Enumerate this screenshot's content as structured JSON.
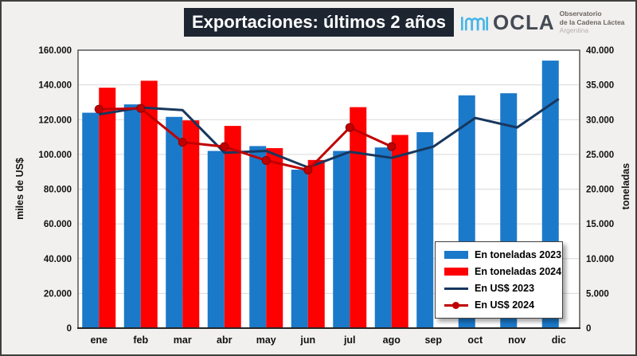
{
  "header": {
    "title": "Exportaciones: últimos 2 años",
    "logo": {
      "wordmark": "OCLA",
      "line1": "Observatorio",
      "line2": "de la Cadena Láctea",
      "line3": "Argentina"
    }
  },
  "colors": {
    "title_bg": "#1d2531",
    "figure_bg": "#f1f0ee",
    "plot_bg": "#ffffff",
    "grid": "#d9d9d9",
    "blue_bar": "#1b79c9",
    "red_bar": "#fe0000",
    "navy_line": "#17375e",
    "darkred_line": "#c00000",
    "logo_wave": "#45b5e8"
  },
  "chart_data": {
    "type": "combo",
    "title": "Exportaciones: últimos 2 años",
    "categories": [
      "ene",
      "feb",
      "mar",
      "abr",
      "may",
      "jun",
      "jul",
      "ago",
      "sep",
      "oct",
      "nov",
      "dic"
    ],
    "series": [
      {
        "name": "En toneladas 2023",
        "kind": "bar",
        "axis": "right",
        "color": "#1b79c9",
        "values": [
          31000,
          32200,
          30400,
          25500,
          26200,
          22800,
          25500,
          26000,
          28200,
          33500,
          33800,
          38500
        ]
      },
      {
        "name": "En toneladas 2024",
        "kind": "bar",
        "axis": "right",
        "color": "#fe0000",
        "values": [
          34600,
          35600,
          29900,
          29100,
          25900,
          24200,
          31800,
          27800,
          null,
          null,
          null,
          null
        ]
      },
      {
        "name": "En US$ 2023",
        "kind": "line",
        "axis": "left",
        "color": "#17375e",
        "marker": false,
        "values": [
          123000,
          127000,
          125500,
          101000,
          102000,
          92500,
          101500,
          98000,
          104500,
          121000,
          115500,
          132000
        ]
      },
      {
        "name": "En US$ 2024",
        "kind": "line",
        "axis": "left",
        "color": "#c00000",
        "marker": true,
        "values": [
          126000,
          126500,
          107000,
          104500,
          96500,
          91000,
          115500,
          104500,
          null,
          null,
          null,
          null
        ]
      }
    ],
    "left_axis": {
      "label": "miles de US$",
      "min": 0,
      "max": 160000,
      "ticks": [
        "0",
        "20.000",
        "40.000",
        "60.000",
        "80.000",
        "100.000",
        "120.000",
        "140.000",
        "160.000"
      ]
    },
    "right_axis": {
      "label": "toneladas",
      "min": 0,
      "max": 40000,
      "ticks": [
        "0",
        "5.000",
        "10.000",
        "15.000",
        "20.000",
        "25.000",
        "30.000",
        "35.000",
        "40.000"
      ]
    },
    "grid": true,
    "legend_position": "inside-bottom-right"
  }
}
